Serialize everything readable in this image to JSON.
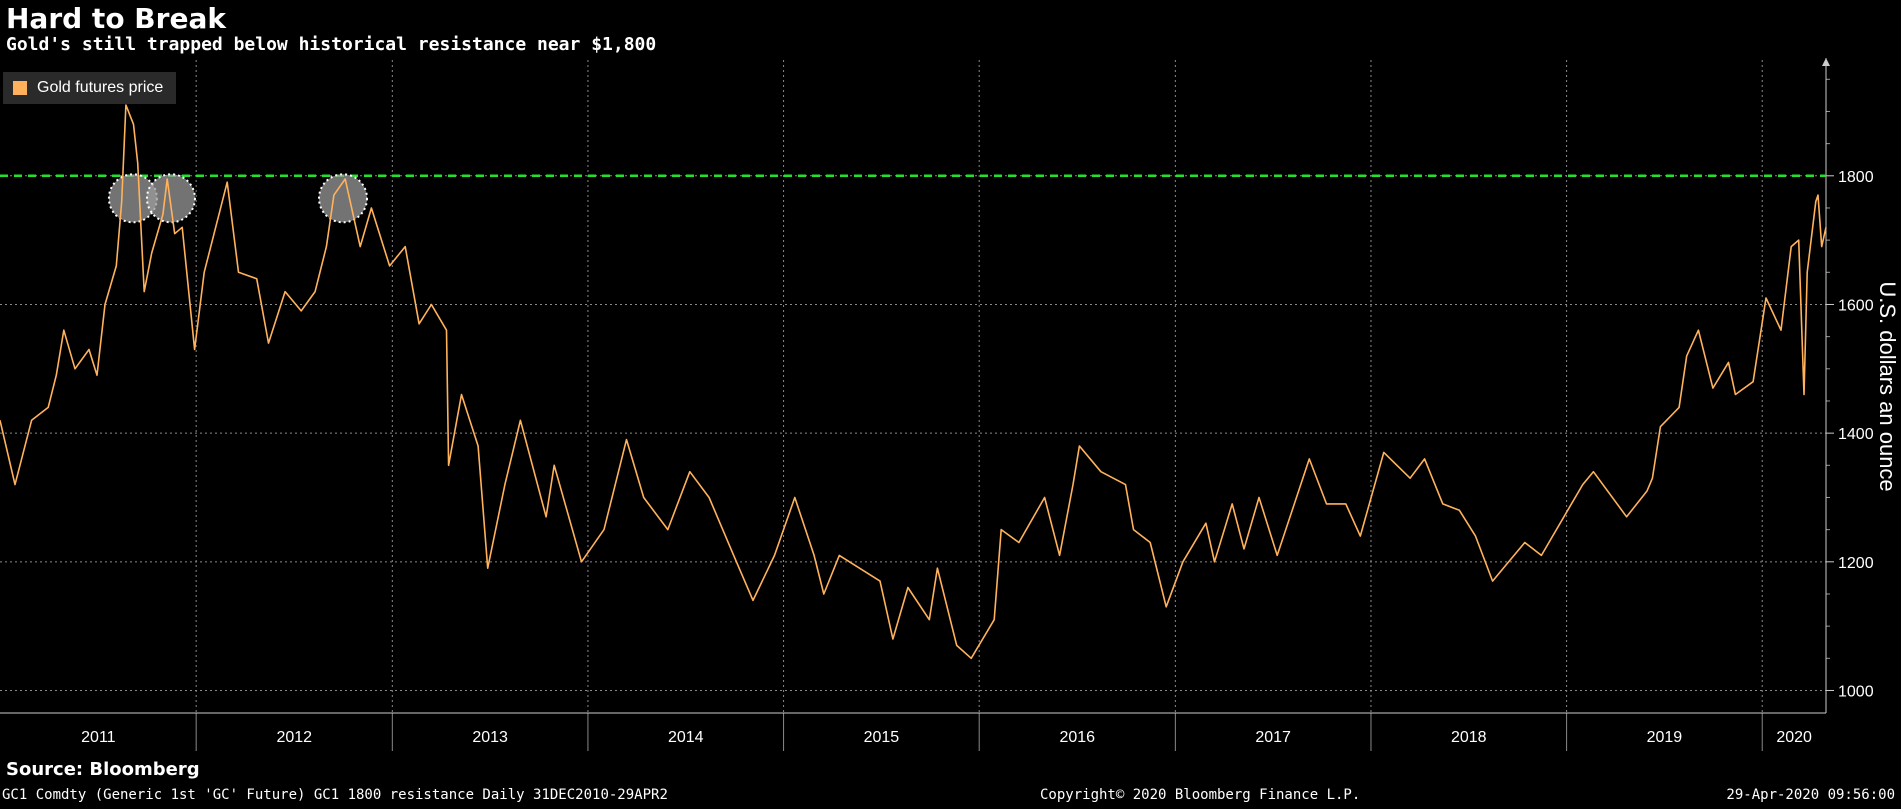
{
  "header": {
    "title": "Hard to Break",
    "subtitle": "Gold's still trapped below historical resistance near $1,800"
  },
  "legend": {
    "label": "Gold futures price"
  },
  "footer": {
    "source": "Source: Bloomberg",
    "left_text": "GC1 Comdty (Generic 1st 'GC' Future) GC1 1800 resistance  Daily 31DEC2010-29APR2",
    "center_text": "Copyright© 2020 Bloomberg Finance L.P.",
    "right_text": "29-Apr-2020 09:56:00"
  },
  "colors": {
    "background": "#000000",
    "series": "#ffb25b",
    "resistance": "#23e02a",
    "grid": "#8a8a8a",
    "highlight": "#9a9a9a"
  },
  "chart_data": {
    "type": "line",
    "title": "Hard to Break",
    "subtitle": "Gold's still trapped below historical resistance near $1,800",
    "ylabel": "U.S. dollars an ounce",
    "xlabel": "",
    "legend_position": "top-left",
    "grid": true,
    "ylim": [
      965,
      1980
    ],
    "xlim": [
      "2010-12-31",
      "2020-04-29"
    ],
    "y_ticks": [
      1000,
      1200,
      1400,
      1600,
      1800
    ],
    "y_tick_labels": [
      "1000",
      "1200",
      "1400",
      "1600",
      "1800"
    ],
    "x_year_labels": [
      {
        "label": "2011",
        "start": "2011-01-01",
        "end": "2012-01-01"
      },
      {
        "label": "2012",
        "start": "2012-01-01",
        "end": "2013-01-01"
      },
      {
        "label": "2013",
        "start": "2013-01-01",
        "end": "2014-01-01"
      },
      {
        "label": "2014",
        "start": "2014-01-01",
        "end": "2015-01-01"
      },
      {
        "label": "2015",
        "start": "2015-01-01",
        "end": "2016-01-01"
      },
      {
        "label": "2016",
        "start": "2016-01-01",
        "end": "2017-01-01"
      },
      {
        "label": "2017",
        "start": "2017-01-01",
        "end": "2018-01-01"
      },
      {
        "label": "2018",
        "start": "2018-01-01",
        "end": "2019-01-01"
      },
      {
        "label": "2019",
        "start": "2019-01-01",
        "end": "2020-01-01"
      },
      {
        "label": "2020",
        "start": "2020-01-01",
        "end": "2020-04-29"
      }
    ],
    "series": [
      {
        "name": "Gold futures price",
        "color": "#ffb25b",
        "points": [
          [
            "2010-12-31",
            1420
          ],
          [
            "2011-01-28",
            1320
          ],
          [
            "2011-02-28",
            1420
          ],
          [
            "2011-03-31",
            1440
          ],
          [
            "2011-04-15",
            1490
          ],
          [
            "2011-04-29",
            1560
          ],
          [
            "2011-05-20",
            1500
          ],
          [
            "2011-06-15",
            1530
          ],
          [
            "2011-06-30",
            1490
          ],
          [
            "2011-07-15",
            1600
          ],
          [
            "2011-08-05",
            1660
          ],
          [
            "2011-08-15",
            1760
          ],
          [
            "2011-08-23",
            1910
          ],
          [
            "2011-09-06",
            1880
          ],
          [
            "2011-09-14",
            1820
          ],
          [
            "2011-09-26",
            1620
          ],
          [
            "2011-10-10",
            1680
          ],
          [
            "2011-10-31",
            1740
          ],
          [
            "2011-11-08",
            1795
          ],
          [
            "2011-11-22",
            1710
          ],
          [
            "2011-12-06",
            1720
          ],
          [
            "2011-12-29",
            1530
          ],
          [
            "2012-01-16",
            1650
          ],
          [
            "2012-02-28",
            1790
          ],
          [
            "2012-03-20",
            1650
          ],
          [
            "2012-04-23",
            1640
          ],
          [
            "2012-05-15",
            1540
          ],
          [
            "2012-06-15",
            1620
          ],
          [
            "2012-07-15",
            1590
          ],
          [
            "2012-08-10",
            1620
          ],
          [
            "2012-08-31",
            1690
          ],
          [
            "2012-09-14",
            1770
          ],
          [
            "2012-10-05",
            1795
          ],
          [
            "2012-11-02",
            1690
          ],
          [
            "2012-11-23",
            1750
          ],
          [
            "2012-12-27",
            1660
          ],
          [
            "2013-01-25",
            1690
          ],
          [
            "2013-02-20",
            1570
          ],
          [
            "2013-03-15",
            1600
          ],
          [
            "2013-04-12",
            1560
          ],
          [
            "2013-04-16",
            1350
          ],
          [
            "2013-05-10",
            1460
          ],
          [
            "2013-06-10",
            1380
          ],
          [
            "2013-06-28",
            1190
          ],
          [
            "2013-07-30",
            1320
          ],
          [
            "2013-08-28",
            1420
          ],
          [
            "2013-10-15",
            1270
          ],
          [
            "2013-10-30",
            1350
          ],
          [
            "2013-12-20",
            1200
          ],
          [
            "2014-01-31",
            1250
          ],
          [
            "2014-03-14",
            1390
          ],
          [
            "2014-04-15",
            1300
          ],
          [
            "2014-05-30",
            1250
          ],
          [
            "2014-07-10",
            1340
          ],
          [
            "2014-08-15",
            1300
          ],
          [
            "2014-09-30",
            1210
          ],
          [
            "2014-11-05",
            1140
          ],
          [
            "2014-12-15",
            1210
          ],
          [
            "2015-01-22",
            1300
          ],
          [
            "2015-02-27",
            1210
          ],
          [
            "2015-03-17",
            1150
          ],
          [
            "2015-04-15",
            1210
          ],
          [
            "2015-06-30",
            1170
          ],
          [
            "2015-07-24",
            1080
          ],
          [
            "2015-08-21",
            1160
          ],
          [
            "2015-09-30",
            1110
          ],
          [
            "2015-10-15",
            1190
          ],
          [
            "2015-11-20",
            1070
          ],
          [
            "2015-12-17",
            1050
          ],
          [
            "2016-01-29",
            1110
          ],
          [
            "2016-02-11",
            1250
          ],
          [
            "2016-03-15",
            1230
          ],
          [
            "2016-05-02",
            1300
          ],
          [
            "2016-05-30",
            1210
          ],
          [
            "2016-06-24",
            1320
          ],
          [
            "2016-07-06",
            1380
          ],
          [
            "2016-08-15",
            1340
          ],
          [
            "2016-09-30",
            1320
          ],
          [
            "2016-10-15",
            1250
          ],
          [
            "2016-11-15",
            1230
          ],
          [
            "2016-12-15",
            1130
          ],
          [
            "2017-01-15",
            1200
          ],
          [
            "2017-02-27",
            1260
          ],
          [
            "2017-03-15",
            1200
          ],
          [
            "2017-04-17",
            1290
          ],
          [
            "2017-05-09",
            1220
          ],
          [
            "2017-06-06",
            1300
          ],
          [
            "2017-07-10",
            1210
          ],
          [
            "2017-09-08",
            1360
          ],
          [
            "2017-10-10",
            1290
          ],
          [
            "2017-11-15",
            1290
          ],
          [
            "2017-12-12",
            1240
          ],
          [
            "2018-01-25",
            1370
          ],
          [
            "2018-03-15",
            1330
          ],
          [
            "2018-04-11",
            1360
          ],
          [
            "2018-05-15",
            1290
          ],
          [
            "2018-06-15",
            1280
          ],
          [
            "2018-07-15",
            1240
          ],
          [
            "2018-08-16",
            1170
          ],
          [
            "2018-09-15",
            1200
          ],
          [
            "2018-10-15",
            1230
          ],
          [
            "2018-11-15",
            1210
          ],
          [
            "2019-01-31",
            1320
          ],
          [
            "2019-02-20",
            1340
          ],
          [
            "2019-04-23",
            1270
          ],
          [
            "2019-05-31",
            1310
          ],
          [
            "2019-06-10",
            1330
          ],
          [
            "2019-06-25",
            1410
          ],
          [
            "2019-07-30",
            1440
          ],
          [
            "2019-08-13",
            1520
          ],
          [
            "2019-09-04",
            1560
          ],
          [
            "2019-10-01",
            1470
          ],
          [
            "2019-10-30",
            1510
          ],
          [
            "2019-11-12",
            1460
          ],
          [
            "2019-12-15",
            1480
          ],
          [
            "2020-01-08",
            1610
          ],
          [
            "2020-02-05",
            1560
          ],
          [
            "2020-02-24",
            1690
          ],
          [
            "2020-03-09",
            1700
          ],
          [
            "2020-03-19",
            1460
          ],
          [
            "2020-03-25",
            1650
          ],
          [
            "2020-04-10",
            1760
          ],
          [
            "2020-04-14",
            1770
          ],
          [
            "2020-04-21",
            1690
          ],
          [
            "2020-04-29",
            1720
          ]
        ]
      }
    ],
    "annotations": [
      {
        "type": "horizontal_line",
        "y": 1800,
        "color": "#23e02a",
        "style": "dashed",
        "label": "GC1 1800 resistance"
      },
      {
        "type": "highlight_circle",
        "x": "2011-09-05",
        "y": 1765
      },
      {
        "type": "highlight_circle",
        "x": "2011-11-15",
        "y": 1765
      },
      {
        "type": "highlight_circle",
        "x": "2012-10-01",
        "y": 1765
      }
    ]
  }
}
